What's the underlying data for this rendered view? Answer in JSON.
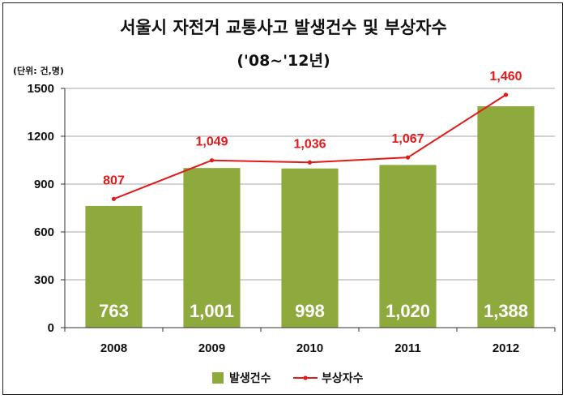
{
  "title": "서울시 자전거 교통사고 발생건수 및 부상자수",
  "subtitle": "('08~'12년)",
  "unit_note": "(단위: 건,명)",
  "chart_data": {
    "type": "bar",
    "categories": [
      "2008",
      "2009",
      "2010",
      "2011",
      "2012"
    ],
    "ylim": [
      0,
      1500
    ],
    "yticks": [
      "0",
      "300",
      "600",
      "900",
      "1200",
      "1500"
    ],
    "grid": true,
    "legend_position": "bottom",
    "series": [
      {
        "name": "발생건수",
        "type": "bar",
        "color": "#8faa3c",
        "values": [
          763,
          1001,
          998,
          1020,
          1388
        ],
        "labels": [
          "763",
          "1,001",
          "998",
          "1,020",
          "1,388"
        ]
      },
      {
        "name": "부상자수",
        "type": "line",
        "color": "#e21a1a",
        "values": [
          807,
          1049,
          1036,
          1067,
          1460
        ],
        "labels": [
          "807",
          "1,049",
          "1,036",
          "1,067",
          "1,460"
        ]
      }
    ]
  }
}
